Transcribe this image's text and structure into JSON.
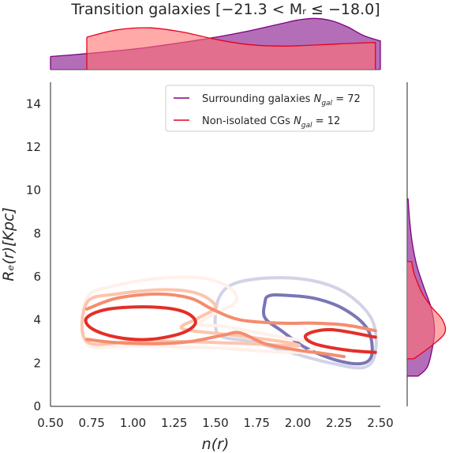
{
  "chart_data": {
    "type": "kde-contour",
    "title": "Transition galaxies [−21.3 < Mᵣ ≤ −18.0]",
    "xlabel": "n(r)",
    "ylabel": "Rₑ(r)[Kpc]",
    "xlim": [
      0.5,
      2.5
    ],
    "ylim": [
      0,
      15
    ],
    "xticks": [
      "0.50",
      "0.75",
      "1.00",
      "1.25",
      "1.50",
      "1.75",
      "2.00",
      "2.25",
      "2.50"
    ],
    "yticks": [
      "0",
      "2",
      "4",
      "6",
      "8",
      "10",
      "12",
      "14"
    ],
    "grid": false,
    "legend_position": "top-right",
    "legend": [
      {
        "label": "Surrounding galaxies N_gal = 72",
        "color": "#800080"
      },
      {
        "label": "Non-isolated CGs N_gal = 12",
        "color": "#e8001e"
      }
    ],
    "series": [
      {
        "name": "Surrounding galaxies",
        "n_gal": 72,
        "fill": "#9b3ea0",
        "x_marginal_range": [
          0.5,
          2.5
        ],
        "y_marginal_range": [
          1.4,
          9.6
        ],
        "contours": [
          {
            "level": 1,
            "color": "#d2d3e7",
            "points": [
              [
                1.5,
                3.7
              ],
              [
                1.52,
                5.0
              ],
              [
                1.62,
                5.7
              ],
              [
                1.85,
                5.95
              ],
              [
                2.1,
                5.8
              ],
              [
                2.3,
                5.2
              ],
              [
                2.45,
                4.0
              ],
              [
                2.47,
                2.5
              ],
              [
                2.4,
                1.8
              ],
              [
                2.2,
                2.0
              ],
              [
                1.95,
                2.5
              ],
              [
                1.72,
                3.0
              ],
              [
                1.55,
                3.2
              ],
              [
                1.5,
                3.7
              ]
            ]
          },
          {
            "level": 2,
            "color": "#7a76b6",
            "points": [
              [
                1.8,
                4.8
              ],
              [
                1.82,
                5.1
              ],
              [
                1.9,
                5.15
              ],
              [
                2.1,
                5.0
              ],
              [
                2.28,
                4.5
              ],
              [
                2.42,
                3.6
              ],
              [
                2.45,
                2.5
              ],
              [
                2.4,
                2.0
              ],
              [
                2.25,
                2.1
              ],
              [
                2.05,
                2.7
              ],
              [
                1.9,
                3.5
              ],
              [
                1.8,
                4.1
              ],
              [
                1.8,
                4.8
              ]
            ]
          }
        ],
        "x_marginal": [
          [
            0.5,
            0.25
          ],
          [
            0.7,
            0.3
          ],
          [
            0.9,
            0.36
          ],
          [
            1.1,
            0.43
          ],
          [
            1.3,
            0.52
          ],
          [
            1.5,
            0.62
          ],
          [
            1.7,
            0.74
          ],
          [
            1.9,
            0.88
          ],
          [
            2.0,
            0.95
          ],
          [
            2.1,
            0.98
          ],
          [
            2.2,
            0.94
          ],
          [
            2.3,
            0.82
          ],
          [
            2.4,
            0.65
          ],
          [
            2.5,
            0.55
          ]
        ],
        "y_marginal": [
          [
            1.4,
            0.25
          ],
          [
            1.8,
            0.45
          ],
          [
            2.5,
            0.55
          ],
          [
            3.5,
            0.62
          ],
          [
            4.5,
            0.55
          ],
          [
            5.5,
            0.38
          ],
          [
            6.5,
            0.22
          ],
          [
            7.5,
            0.12
          ],
          [
            8.5,
            0.06
          ],
          [
            9.6,
            0.02
          ]
        ]
      },
      {
        "name": "Non-isolated CGs",
        "n_gal": 12,
        "fill": "#ff6f6f",
        "x_marginal_range": [
          0.72,
          2.47
        ],
        "y_marginal_range": [
          2.2,
          6.7
        ],
        "contours": [
          {
            "level": 1,
            "color": "#fff0ea",
            "points": [
              [
                0.72,
                2.9
              ],
              [
                0.72,
                5.0
              ],
              [
                0.9,
                5.6
              ],
              [
                1.2,
                5.95
              ],
              [
                1.45,
                5.9
              ],
              [
                1.6,
                5.4
              ],
              [
                1.62,
                4.8
              ],
              [
                1.5,
                4.3
              ],
              [
                1.4,
                3.8
              ],
              [
                1.55,
                3.7
              ],
              [
                1.9,
                3.2
              ],
              [
                2.1,
                2.9
              ],
              [
                2.0,
                2.5
              ],
              [
                1.5,
                2.7
              ],
              [
                1.0,
                2.8
              ],
              [
                0.72,
                2.9
              ]
            ]
          },
          {
            "level": 2,
            "color": "#fdc5ad",
            "points": [
              [
                0.72,
                3.0
              ],
              [
                0.72,
                4.8
              ],
              [
                0.9,
                5.2
              ],
              [
                1.2,
                5.4
              ],
              [
                1.4,
                5.2
              ],
              [
                1.5,
                4.6
              ],
              [
                1.4,
                4.1
              ],
              [
                1.3,
                3.6
              ],
              [
                1.6,
                3.3
              ],
              [
                1.9,
                3.0
              ],
              [
                2.0,
                2.8
              ],
              [
                1.7,
                2.9
              ],
              [
                1.3,
                3.0
              ],
              [
                1.0,
                3.0
              ],
              [
                0.72,
                3.0
              ]
            ]
          },
          {
            "level": 3,
            "color": "#f48d6e",
            "points": [
              [
                0.72,
                4.5
              ],
              [
                0.9,
                5.0
              ],
              [
                1.15,
                5.2
              ],
              [
                1.35,
                5.0
              ],
              [
                1.48,
                4.5
              ],
              [
                1.65,
                4.0
              ],
              [
                1.9,
                3.85
              ],
              [
                2.1,
                3.85
              ],
              [
                2.3,
                3.75
              ],
              [
                2.47,
                3.5
              ]
            ]
          },
          {
            "level": 4,
            "color": "#f48d6e",
            "points": [
              [
                0.72,
                3.1
              ],
              [
                0.9,
                2.95
              ],
              [
                1.15,
                2.9
              ],
              [
                1.35,
                3.0
              ],
              [
                1.55,
                3.3
              ],
              [
                1.65,
                3.4
              ],
              [
                1.8,
                2.9
              ],
              [
                2.0,
                2.6
              ],
              [
                2.15,
                2.45
              ],
              [
                2.28,
                2.3
              ]
            ]
          },
          {
            "level": 5,
            "color": "#e32f27",
            "points": [
              [
                0.72,
                4.1
              ],
              [
                0.85,
                4.5
              ],
              [
                1.1,
                4.6
              ],
              [
                1.3,
                4.4
              ],
              [
                1.38,
                3.9
              ],
              [
                1.3,
                3.4
              ],
              [
                1.1,
                3.1
              ],
              [
                0.9,
                3.2
              ],
              [
                0.75,
                3.6
              ],
              [
                0.72,
                4.1
              ]
            ]
          },
          {
            "level": 6,
            "color": "#e32f27",
            "points": [
              [
                2.47,
                3.2
              ],
              [
                2.2,
                3.55
              ],
              [
                2.05,
                3.3
              ],
              [
                2.1,
                2.9
              ],
              [
                2.3,
                2.6
              ],
              [
                2.47,
                2.5
              ]
            ]
          }
        ],
        "x_marginal": [
          [
            0.72,
            0.62
          ],
          [
            0.9,
            0.76
          ],
          [
            1.1,
            0.8
          ],
          [
            1.3,
            0.72
          ],
          [
            1.5,
            0.58
          ],
          [
            1.7,
            0.48
          ],
          [
            1.9,
            0.45
          ],
          [
            2.1,
            0.47
          ],
          [
            2.3,
            0.5
          ],
          [
            2.47,
            0.52
          ]
        ],
        "y_marginal": [
          [
            2.2,
            0.15
          ],
          [
            2.8,
            0.55
          ],
          [
            3.4,
            0.85
          ],
          [
            4.0,
            0.8
          ],
          [
            4.6,
            0.55
          ],
          [
            5.2,
            0.35
          ],
          [
            5.8,
            0.22
          ],
          [
            6.2,
            0.15
          ],
          [
            6.7,
            0.1
          ]
        ]
      }
    ]
  }
}
